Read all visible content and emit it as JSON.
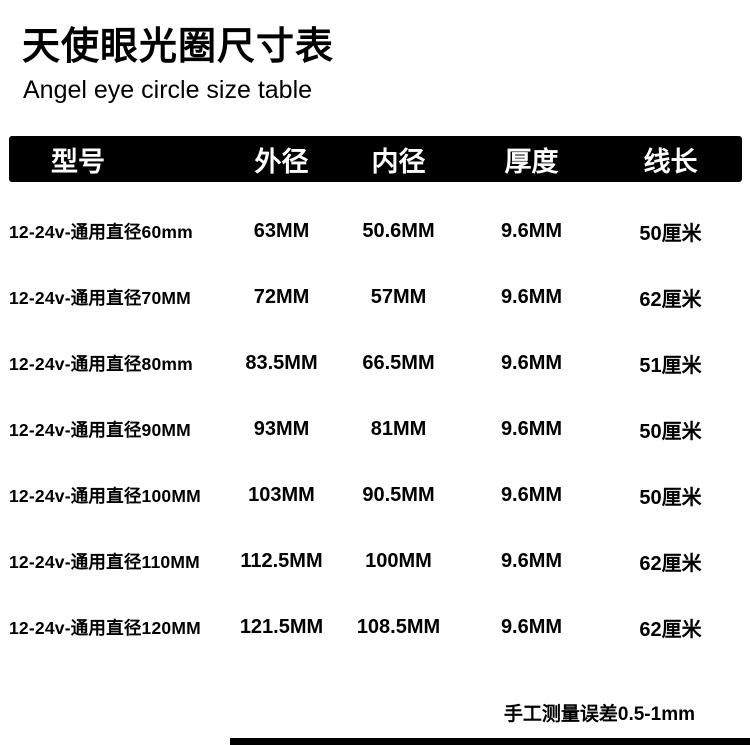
{
  "header": {
    "title": "天使眼光圈尺寸表",
    "subtitle": "Angel eye circle size table"
  },
  "table": {
    "columns": [
      "型号",
      "外径",
      "内径",
      "厚度",
      "线长"
    ],
    "rows": [
      {
        "model": "12-24v-通用直径60mm",
        "outer": "63MM",
        "inner": "50.6MM",
        "thickness": "9.6MM",
        "wire": "50厘米"
      },
      {
        "model": "12-24v-通用直径70MM",
        "outer": "72MM",
        "inner": "57MM",
        "thickness": "9.6MM",
        "wire": "62厘米"
      },
      {
        "model": "12-24v-通用直径80mm",
        "outer": "83.5MM",
        "inner": "66.5MM",
        "thickness": "9.6MM",
        "wire": "51厘米"
      },
      {
        "model": "12-24v-通用直径90MM",
        "outer": "93MM",
        "inner": "81MM",
        "thickness": "9.6MM",
        "wire": "50厘米"
      },
      {
        "model": "12-24v-通用直径100MM",
        "outer": "103MM",
        "inner": "90.5MM",
        "thickness": "9.6MM",
        "wire": "50厘米"
      },
      {
        "model": "12-24v-通用直径110MM",
        "outer": "112.5MM",
        "inner": "100MM",
        "thickness": "9.6MM",
        "wire": "62厘米"
      },
      {
        "model": "12-24v-通用直径120MM",
        "outer": "121.5MM",
        "inner": "108.5MM",
        "thickness": "9.6MM",
        "wire": "62厘米"
      }
    ]
  },
  "footer": {
    "note": "手工测量误差0.5-1mm"
  },
  "colors": {
    "background": "#ffffff",
    "header_bar_bg": "#000000",
    "header_bar_text": "#ffffff",
    "body_text": "#000000"
  }
}
